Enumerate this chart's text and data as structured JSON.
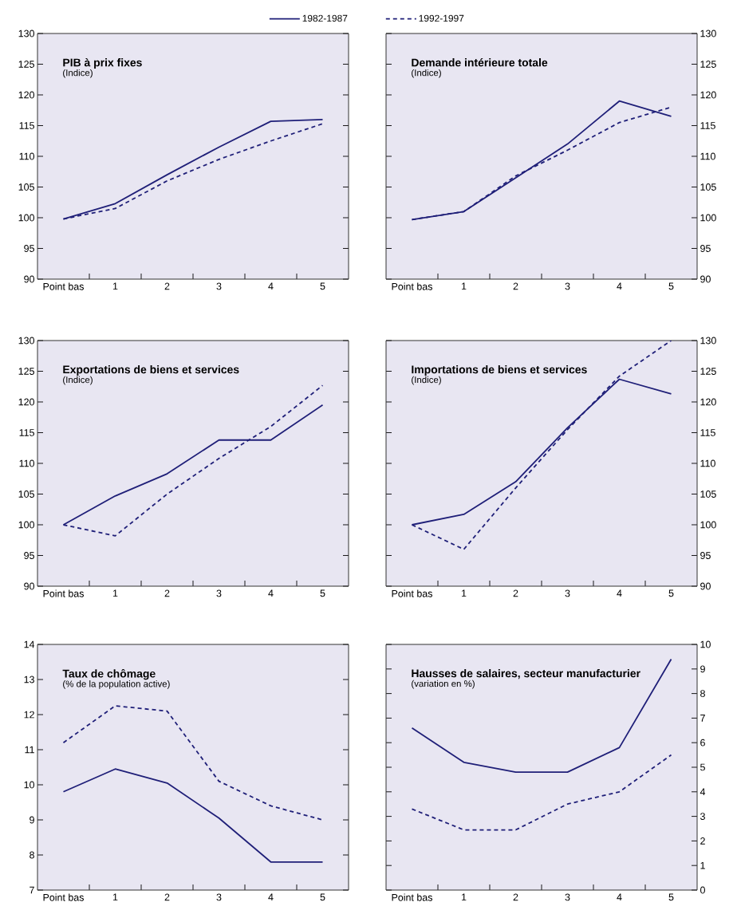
{
  "chart_data": [
    {
      "type": "line",
      "title": "PIB à prix fixes",
      "subtitle": "(Indice)",
      "categories": [
        "Point bas",
        "1",
        "2",
        "3",
        "4",
        "5"
      ],
      "ylim": [
        90,
        130
      ],
      "yticks": [
        90,
        95,
        100,
        105,
        110,
        115,
        120,
        125,
        130
      ],
      "legend": "top",
      "series": [
        {
          "name": "1982-1987",
          "color": "#1f1f78",
          "line_style": "solid",
          "values": [
            99.8,
            102.3,
            107,
            111.5,
            115.7,
            116
          ]
        },
        {
          "name": "1992-1997",
          "color": "#1f1f78",
          "line_style": "dashed",
          "values": [
            99.8,
            101.5,
            106,
            109.5,
            112.5,
            115.3
          ]
        }
      ]
    },
    {
      "type": "line",
      "title": "Demande intérieure totale",
      "subtitle": "(Indice)",
      "categories": [
        "Point bas",
        "1",
        "2",
        "3",
        "4",
        "5"
      ],
      "ylim": [
        90,
        130
      ],
      "yticks": [
        90,
        95,
        100,
        105,
        110,
        115,
        120,
        125,
        130
      ],
      "series": [
        {
          "color": "#1f1f78",
          "line_style": "solid",
          "values": [
            99.7,
            101,
            106.5,
            112,
            119,
            116.5
          ]
        },
        {
          "color": "#1f1f78",
          "line_style": "dashed",
          "values": [
            99.7,
            101,
            106.8,
            111,
            115.5,
            118
          ]
        }
      ]
    },
    {
      "type": "line",
      "title": "Exportations de biens et services",
      "subtitle": "(Indice)",
      "categories": [
        "Point bas",
        "1",
        "2",
        "3",
        "4",
        "5"
      ],
      "ylim": [
        90,
        130
      ],
      "yticks": [
        90,
        95,
        100,
        105,
        110,
        115,
        120,
        125,
        130
      ],
      "series": [
        {
          "color": "#1f1f78",
          "line_style": "solid",
          "values": [
            100,
            104.7,
            108.3,
            113.8,
            113.8,
            119.5
          ]
        },
        {
          "color": "#1f1f78",
          "line_style": "dashed",
          "values": [
            100,
            98.2,
            105,
            110.8,
            116,
            122.7
          ]
        }
      ]
    },
    {
      "type": "line",
      "title": "Importations de biens et services",
      "subtitle": "(Indice)",
      "categories": [
        "Point bas",
        "1",
        "2",
        "3",
        "4",
        "5"
      ],
      "ylim": [
        90,
        130
      ],
      "yticks": [
        90,
        95,
        100,
        105,
        110,
        115,
        120,
        125,
        130
      ],
      "series": [
        {
          "color": "#1f1f78",
          "line_style": "solid",
          "values": [
            100,
            101.7,
            107,
            115.8,
            123.7,
            121.3
          ]
        },
        {
          "color": "#1f1f78",
          "line_style": "dashed",
          "values": [
            100,
            96,
            106,
            115.5,
            124.2,
            130
          ]
        }
      ]
    },
    {
      "type": "line",
      "title": "Taux de chômage",
      "subtitle": "(% de la population active)",
      "categories": [
        "Point bas",
        "1",
        "2",
        "3",
        "4",
        "5"
      ],
      "ylim": [
        7,
        14
      ],
      "yticks": [
        7,
        8,
        9,
        10,
        11,
        12,
        13,
        14
      ],
      "series": [
        {
          "color": "#1f1f78",
          "line_style": "solid",
          "values": [
            9.8,
            10.45,
            10.05,
            9.05,
            7.8,
            7.8
          ]
        },
        {
          "color": "#1f1f78",
          "line_style": "dashed",
          "values": [
            11.2,
            12.25,
            12.1,
            10.1,
            9.4,
            9.0
          ]
        }
      ]
    },
    {
      "type": "line",
      "title": "Hausses de salaires, secteur manufacturier",
      "subtitle": "(variation en %)",
      "categories": [
        "Point bas",
        "1",
        "2",
        "3",
        "4",
        "5"
      ],
      "ylim": [
        0,
        10
      ],
      "yticks": [
        0,
        1,
        2,
        3,
        4,
        5,
        6,
        7,
        8,
        9,
        10
      ],
      "series": [
        {
          "color": "#1f1f78",
          "line_style": "solid",
          "values": [
            6.6,
            5.2,
            4.8,
            4.8,
            5.8,
            9.4
          ]
        },
        {
          "color": "#1f1f78",
          "line_style": "dashed",
          "values": [
            3.3,
            2.45,
            2.45,
            3.5,
            4.0,
            5.5
          ]
        }
      ]
    }
  ]
}
